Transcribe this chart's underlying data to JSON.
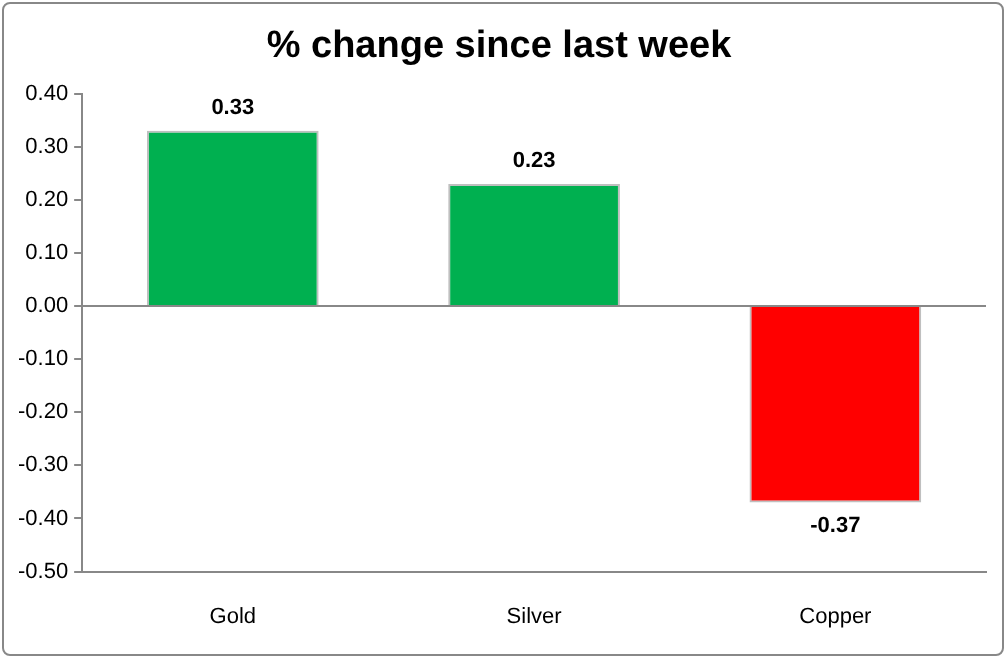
{
  "chart_data": {
    "type": "bar",
    "title": "% change since last week",
    "categories": [
      "Gold",
      "Silver",
      "Copper"
    ],
    "values": [
      0.33,
      0.23,
      -0.37
    ],
    "colors": [
      "#00b050",
      "#00b050",
      "#ff0000"
    ],
    "ylim": [
      -0.5,
      0.4
    ],
    "yticks": [
      {
        "value": -0.5,
        "label": "-0.50"
      },
      {
        "value": -0.4,
        "label": "-0.40"
      },
      {
        "value": -0.3,
        "label": "-0.30"
      },
      {
        "value": -0.2,
        "label": "-0.20"
      },
      {
        "value": -0.1,
        "label": "-0.10"
      },
      {
        "value": 0,
        "label": "0.00"
      },
      {
        "value": 0.1,
        "label": "0.10"
      },
      {
        "value": 0.2,
        "label": "0.20"
      },
      {
        "value": 0.3,
        "label": "0.30"
      },
      {
        "value": 0.4,
        "label": "0.40"
      }
    ],
    "data_labels": true
  }
}
